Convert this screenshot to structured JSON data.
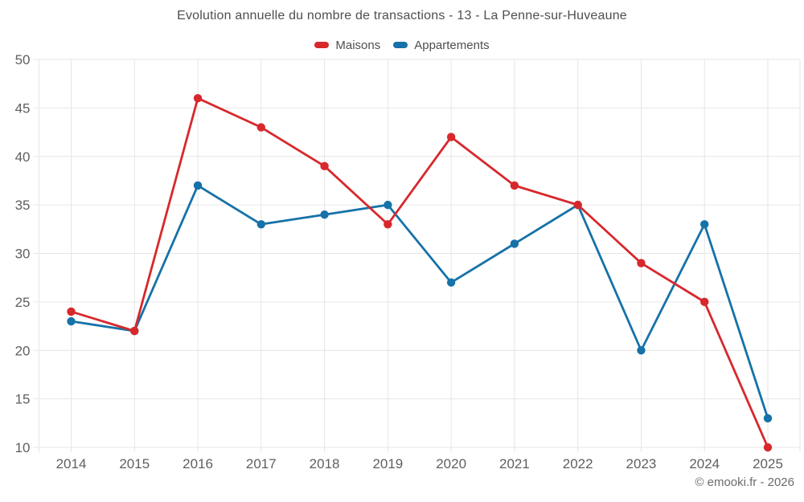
{
  "title": "Evolution annuelle du nombre de transactions - 13 - La Penne-sur-Huveaune",
  "footer": "© emooki.fr - 2026",
  "colors": {
    "maisons": "#d7282c",
    "appartements": "#1672a8",
    "grid": "#e6e6e6",
    "axis_label_text": "#5f5f5f",
    "title_text": "#4f4f4f"
  },
  "legend": {
    "items": [
      {
        "label": "Maisons",
        "color": "#d7282c"
      },
      {
        "label": "Appartements",
        "color": "#1672a8"
      }
    ]
  },
  "chart_data": {
    "type": "line",
    "title": "Evolution annuelle du nombre de transactions - 13 - La Penne-sur-Huveaune",
    "categories": [
      "2014",
      "2015",
      "2016",
      "2017",
      "2018",
      "2019",
      "2020",
      "2021",
      "2022",
      "2023",
      "2024",
      "2025"
    ],
    "series": [
      {
        "name": "Maisons",
        "color": "#d7282c",
        "values": [
          24,
          22,
          46,
          43,
          39,
          33,
          42,
          37,
          35,
          29,
          25,
          10
        ]
      },
      {
        "name": "Appartements",
        "color": "#1672a8",
        "values": [
          23,
          22,
          37,
          33,
          34,
          35,
          27,
          31,
          35,
          20,
          33,
          13
        ]
      }
    ],
    "xlabel": "",
    "ylabel": "",
    "ylim": [
      10,
      50
    ],
    "yticks": [
      10,
      15,
      20,
      25,
      30,
      35,
      40,
      45,
      50
    ],
    "grid": true,
    "legend_position": "top"
  }
}
